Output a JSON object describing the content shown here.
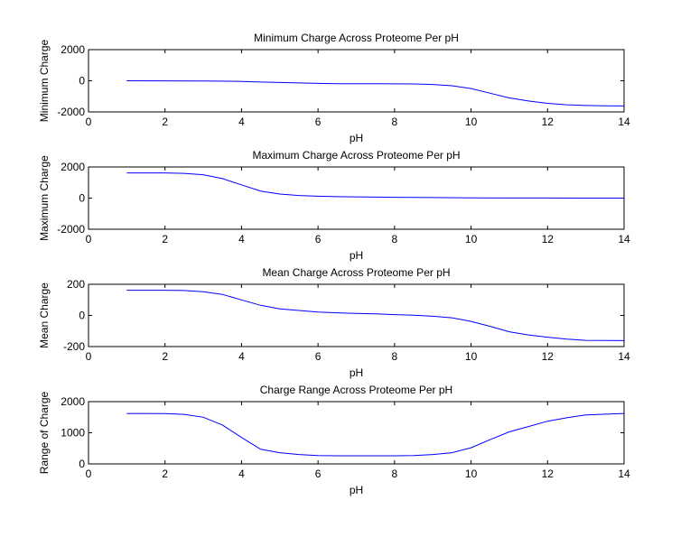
{
  "chart_data": [
    {
      "type": "line",
      "title": "Minimum Charge Across Proteome Per pH",
      "xlabel": "pH",
      "ylabel": "Minimum Charge",
      "xlim": [
        0,
        14
      ],
      "ylim": [
        -2000,
        2000
      ],
      "xticks": [
        0,
        2,
        4,
        6,
        8,
        10,
        12,
        14
      ],
      "yticks": [
        -2000,
        0,
        2000
      ],
      "grid": false,
      "series_color": "#0000ff",
      "x": [
        1,
        2,
        3,
        4,
        4.5,
        5,
        5.5,
        6,
        6.5,
        7,
        7.5,
        8,
        8.5,
        9,
        9.5,
        10,
        10.5,
        11,
        11.5,
        12,
        12.5,
        13,
        13.5,
        14
      ],
      "y": [
        -2,
        -4,
        -10,
        -40,
        -80,
        -110,
        -140,
        -170,
        -185,
        -190,
        -190,
        -195,
        -205,
        -240,
        -320,
        -500,
        -800,
        -1100,
        -1300,
        -1450,
        -1540,
        -1590,
        -1610,
        -1620
      ]
    },
    {
      "type": "line",
      "title": "Maximum Charge Across Proteome Per pH",
      "xlabel": "pH",
      "ylabel": "Maximum Charge",
      "xlim": [
        0,
        14
      ],
      "ylim": [
        -2000,
        2000
      ],
      "xticks": [
        0,
        2,
        4,
        6,
        8,
        10,
        12,
        14
      ],
      "yticks": [
        -2000,
        0,
        2000
      ],
      "grid": false,
      "series_color": "#0000ff",
      "x": [
        1,
        2,
        2.5,
        3,
        3.5,
        4,
        4.5,
        5,
        5.5,
        6,
        6.5,
        7,
        8,
        9,
        10,
        11,
        12,
        13,
        14
      ],
      "y": [
        1620,
        1615,
        1590,
        1500,
        1250,
        850,
        450,
        260,
        170,
        120,
        95,
        80,
        55,
        35,
        15,
        8,
        4,
        2,
        1
      ]
    },
    {
      "type": "line",
      "title": "Mean Charge Across Proteome Per pH",
      "xlabel": "pH",
      "ylabel": "Mean Charge",
      "xlim": [
        0,
        14
      ],
      "ylim": [
        -200,
        200
      ],
      "xticks": [
        0,
        2,
        4,
        6,
        8,
        10,
        12,
        14
      ],
      "yticks": [
        -200,
        0,
        200
      ],
      "grid": false,
      "series_color": "#0000ff",
      "x": [
        1,
        2,
        2.5,
        3,
        3.5,
        4,
        4.5,
        5,
        5.5,
        6,
        6.5,
        7,
        7.5,
        8,
        8.5,
        9,
        9.5,
        10,
        10.5,
        11,
        11.5,
        12,
        12.5,
        13,
        14
      ],
      "y": [
        162,
        162,
        160,
        152,
        135,
        100,
        65,
        42,
        32,
        22,
        17,
        13,
        10,
        5,
        2,
        -5,
        -15,
        -38,
        -70,
        -105,
        -125,
        -140,
        -152,
        -160,
        -162
      ]
    },
    {
      "type": "line",
      "title": "Charge Range Across Proteome Per pH",
      "xlabel": "pH",
      "ylabel": "Range of Charge",
      "xlim": [
        0,
        14
      ],
      "ylim": [
        0,
        2000
      ],
      "xticks": [
        0,
        2,
        4,
        6,
        8,
        10,
        12,
        14
      ],
      "yticks": [
        0,
        1000,
        2000
      ],
      "grid": false,
      "series_color": "#0000ff",
      "x": [
        1,
        2,
        2.5,
        3,
        3.5,
        4,
        4.5,
        5,
        5.5,
        6,
        6.5,
        7,
        7.5,
        8,
        8.5,
        9,
        9.5,
        10,
        10.5,
        11,
        11.5,
        12,
        12.5,
        13,
        14
      ],
      "y": [
        1620,
        1615,
        1590,
        1500,
        1250,
        850,
        470,
        360,
        300,
        270,
        262,
        262,
        262,
        262,
        270,
        300,
        360,
        520,
        780,
        1030,
        1200,
        1370,
        1480,
        1570,
        1620
      ]
    }
  ]
}
